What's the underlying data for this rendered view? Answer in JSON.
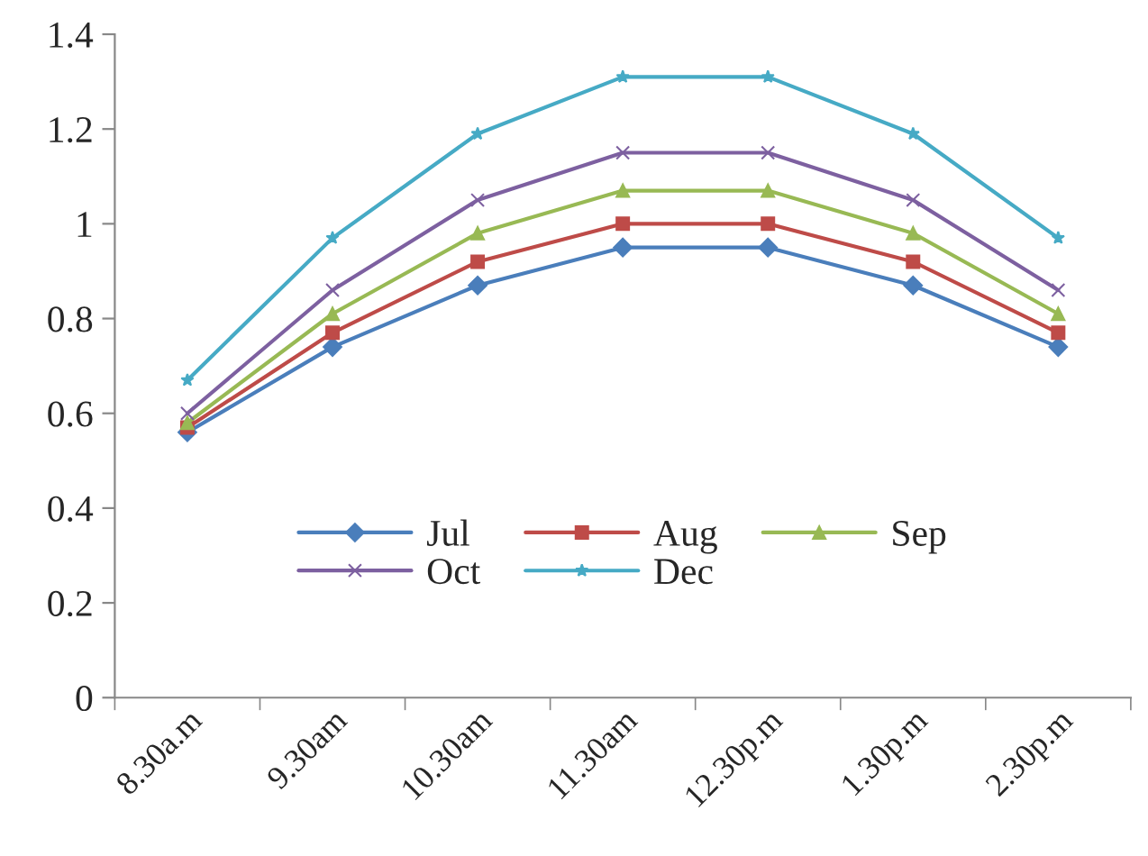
{
  "chart_data": {
    "type": "line",
    "categories": [
      "8.30a.m",
      "9.30am",
      "10.30am",
      "11.30am",
      "12.30p.m",
      "1.30p.m",
      "2.30p.m"
    ],
    "series": [
      {
        "name": "Jul",
        "color": "#4a7ebb",
        "marker": "diamond",
        "values": [
          0.56,
          0.74,
          0.87,
          0.95,
          0.95,
          0.87,
          0.74
        ]
      },
      {
        "name": "Aug",
        "color": "#be4b48",
        "marker": "square",
        "values": [
          0.57,
          0.77,
          0.92,
          1.0,
          1.0,
          0.92,
          0.77
        ]
      },
      {
        "name": "Sep",
        "color": "#98b954",
        "marker": "triangle",
        "values": [
          0.58,
          0.81,
          0.98,
          1.07,
          1.07,
          0.98,
          0.81
        ]
      },
      {
        "name": "Oct",
        "color": "#7d60a0",
        "marker": "cross",
        "values": [
          0.6,
          0.86,
          1.05,
          1.15,
          1.15,
          1.05,
          0.86
        ]
      },
      {
        "name": "Dec",
        "color": "#46aac5",
        "marker": "star",
        "values": [
          0.67,
          0.97,
          1.19,
          1.31,
          1.31,
          1.19,
          0.97
        ]
      }
    ],
    "ylim": [
      0,
      1.4
    ],
    "yticks": [
      0,
      0.2,
      0.4,
      0.6,
      0.8,
      1,
      1.2,
      1.4
    ],
    "grid": false,
    "legend": "bottom"
  }
}
